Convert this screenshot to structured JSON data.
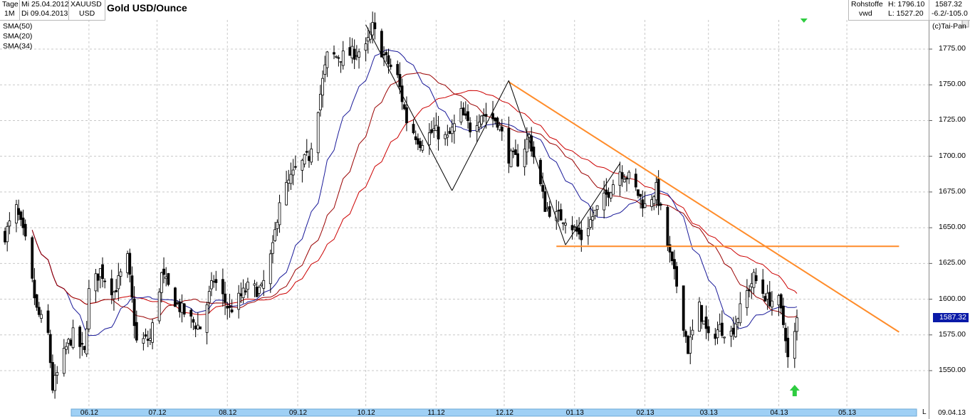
{
  "header": {
    "period_label": "Tage",
    "period_value": "1M",
    "date_from": "Mi 25.04.2012",
    "date_to": "Di 09.04.2013",
    "symbol": "XAUUSD",
    "currency": "USD",
    "title": "Gold USD/Ounce",
    "category": "Rohstoffe",
    "source": "vwd",
    "high_label": "H: 1796.10",
    "low_label": "L: 1527.20",
    "last": "1587.32",
    "change": "-6.2/-105.0",
    "copyright": "(c)Tai-Pan"
  },
  "indicators": [
    {
      "label": "SMA(50)",
      "color": "#cc0000"
    },
    {
      "label": "SMA(20)",
      "color": "#1a1a99"
    },
    {
      "label": "SMA(34)",
      "color": "#990000"
    }
  ],
  "price_tag": "1587.32",
  "bottom_date": "09.04.13",
  "scrollbar_end_label": "L",
  "chart_data": {
    "type": "candlestick",
    "title": "Gold USD/Ounce",
    "y_range": [
      1533,
      1800
    ],
    "y_ticks": [
      1550,
      1575,
      1600,
      1625,
      1650,
      1675,
      1700,
      1725,
      1750,
      1775
    ],
    "x_ticks": [
      "06.12",
      "07.12",
      "08.12",
      "09.12",
      "10.12",
      "11.12",
      "12.12",
      "01.13",
      "02.13",
      "03.13",
      "04.13",
      "05.13"
    ],
    "grid": true,
    "close_anchors": [
      [
        "2012-04-25",
        1645
      ],
      [
        "2012-04-30",
        1663
      ],
      [
        "2012-05-04",
        1640
      ],
      [
        "2012-05-09",
        1592
      ],
      [
        "2012-05-14",
        1575
      ],
      [
        "2012-05-16",
        1538
      ],
      [
        "2012-05-22",
        1566
      ],
      [
        "2012-05-25",
        1575
      ],
      [
        "2012-05-30",
        1562
      ],
      [
        "2012-06-01",
        1605
      ],
      [
        "2012-06-06",
        1620
      ],
      [
        "2012-06-12",
        1605
      ],
      [
        "2012-06-18",
        1628
      ],
      [
        "2012-06-22",
        1570
      ],
      [
        "2012-06-28",
        1572
      ],
      [
        "2012-07-03",
        1617
      ],
      [
        "2012-07-10",
        1596
      ],
      [
        "2012-07-16",
        1585
      ],
      [
        "2012-07-20",
        1580
      ],
      [
        "2012-07-26",
        1614
      ],
      [
        "2012-08-02",
        1592
      ],
      [
        "2012-08-10",
        1608
      ],
      [
        "2012-08-16",
        1606
      ],
      [
        "2012-08-21",
        1635
      ],
      [
        "2012-08-24",
        1670
      ],
      [
        "2012-08-31",
        1690
      ],
      [
        "2012-09-06",
        1700
      ],
      [
        "2012-09-14",
        1770
      ],
      [
        "2012-09-21",
        1770
      ],
      [
        "2012-10-01",
        1775
      ],
      [
        "2012-10-04",
        1790
      ],
      [
        "2012-10-09",
        1770
      ],
      [
        "2012-10-15",
        1755
      ],
      [
        "2012-10-19",
        1725
      ],
      [
        "2012-10-25",
        1710
      ],
      [
        "2012-10-31",
        1718
      ],
      [
        "2012-11-06",
        1712
      ],
      [
        "2012-11-12",
        1730
      ],
      [
        "2012-11-16",
        1720
      ],
      [
        "2012-11-21",
        1730
      ],
      [
        "2012-11-28",
        1725
      ],
      [
        "2012-12-03",
        1700
      ],
      [
        "2012-12-07",
        1697
      ],
      [
        "2012-12-12",
        1714
      ],
      [
        "2012-12-19",
        1665
      ],
      [
        "2012-12-24",
        1658
      ],
      [
        "2012-12-28",
        1657
      ],
      [
        "2013-01-04",
        1643
      ],
      [
        "2013-01-09",
        1658
      ],
      [
        "2013-01-14",
        1670
      ],
      [
        "2013-01-21",
        1690
      ],
      [
        "2013-01-25",
        1685
      ],
      [
        "2013-02-01",
        1665
      ],
      [
        "2013-02-06",
        1677
      ],
      [
        "2013-02-12",
        1630
      ],
      [
        "2013-02-15",
        1610
      ],
      [
        "2013-02-20",
        1565
      ],
      [
        "2013-02-25",
        1594
      ],
      [
        "2013-03-01",
        1572
      ],
      [
        "2013-03-06",
        1580
      ],
      [
        "2013-03-11",
        1576
      ],
      [
        "2013-03-18",
        1605
      ],
      [
        "2013-03-21",
        1615
      ],
      [
        "2013-03-27",
        1600
      ],
      [
        "2013-04-01",
        1598
      ],
      [
        "2013-04-04",
        1575
      ],
      [
        "2013-04-05",
        1558
      ],
      [
        "2013-04-08",
        1575
      ],
      [
        "2013-04-09",
        1587
      ]
    ],
    "trendlines": [
      {
        "name": "resistance",
        "color": "#ff8c2a",
        "from": [
          "2012-12-03",
          1752
        ],
        "to": [
          "2013-05-24",
          1577
        ]
      },
      {
        "name": "support",
        "color": "#ff8c2a",
        "from": [
          "2012-12-24",
          1637
        ],
        "to": [
          "2013-05-24",
          1637
        ]
      },
      {
        "name": "pattern-1",
        "color": "#000000",
        "from": [
          "2012-10-01",
          1792
        ],
        "to": [
          "2012-11-08",
          1676
        ]
      },
      {
        "name": "pattern-2",
        "color": "#000000",
        "from": [
          "2012-11-08",
          1676
        ],
        "to": [
          "2012-12-03",
          1753
        ]
      },
      {
        "name": "pattern-3",
        "color": "#000000",
        "from": [
          "2012-12-03",
          1753
        ],
        "to": [
          "2012-12-28",
          1638
        ]
      },
      {
        "name": "pattern-4",
        "color": "#000000",
        "from": [
          "2012-12-28",
          1638
        ],
        "to": [
          "2013-01-21",
          1695
        ]
      }
    ],
    "sma_periods": [
      50,
      20,
      34
    ],
    "markers": [
      {
        "type": "buy-arrow",
        "date": "2013-04-08",
        "color": "#2ecc40"
      },
      {
        "type": "top-signal",
        "date": "2013-04-08",
        "color": "#2ecc40"
      }
    ]
  }
}
